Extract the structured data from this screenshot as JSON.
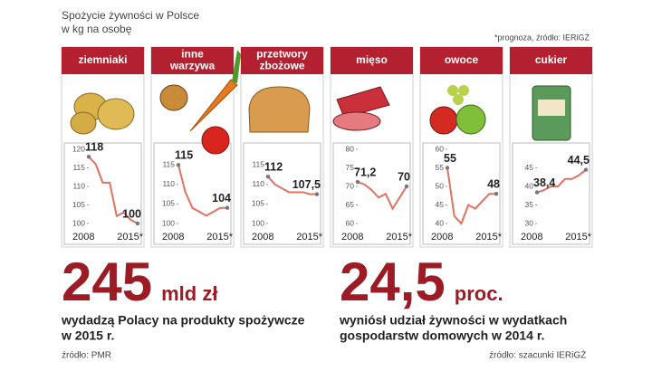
{
  "header": {
    "title": "Spożycie żywności w Polsce",
    "subtitle": "w kg na osobę",
    "note": "*prognoza, źródło: IERiGŻ"
  },
  "chart_data": [
    {
      "type": "line",
      "title": [
        "ziemniaki"
      ],
      "categories": [
        "2008",
        null,
        null,
        null,
        null,
        null,
        null,
        "2015*"
      ],
      "values": [
        118,
        116,
        111,
        111,
        102,
        103,
        101,
        100
      ],
      "value_labels": [
        "118",
        null,
        null,
        null,
        null,
        null,
        null,
        "100"
      ],
      "ylim": [
        100,
        120
      ],
      "yticks": [
        100,
        105,
        110,
        115,
        120
      ],
      "color": "#e2715f"
    },
    {
      "type": "line",
      "title": [
        "inne",
        "warzywa"
      ],
      "categories": [
        "2008",
        null,
        null,
        null,
        null,
        null,
        null,
        "2015*"
      ],
      "values": [
        115,
        108,
        104,
        103,
        102,
        103,
        104,
        104
      ],
      "value_labels": [
        "115",
        null,
        null,
        null,
        null,
        null,
        null,
        "104"
      ],
      "ylim": [
        100,
        119
      ],
      "yticks": [
        100,
        105,
        110,
        115
      ],
      "color": "#e2715f"
    },
    {
      "type": "line",
      "title": [
        "przetwory",
        "zbożowe"
      ],
      "categories": [
        "2008",
        null,
        null,
        null,
        null,
        null,
        null,
        "2015*"
      ],
      "values": [
        112,
        110,
        109,
        108,
        108,
        108,
        107.5,
        107.5
      ],
      "value_labels": [
        "112",
        null,
        null,
        null,
        null,
        null,
        null,
        "107,5"
      ],
      "ylim": [
        100,
        119
      ],
      "yticks": [
        100,
        105,
        110,
        115
      ],
      "color": "#e2715f"
    },
    {
      "type": "line",
      "title": [
        "mięso"
      ],
      "categories": [
        "2008",
        null,
        null,
        null,
        null,
        null,
        null,
        "2015*"
      ],
      "values": [
        71.2,
        70.5,
        69,
        67,
        68,
        64,
        67,
        70
      ],
      "value_labels": [
        "71,2",
        null,
        null,
        null,
        null,
        null,
        null,
        "70"
      ],
      "ylim": [
        60,
        80
      ],
      "yticks": [
        60,
        65,
        70,
        75,
        80
      ],
      "color": "#e2715f"
    },
    {
      "type": "line",
      "title": [
        "owoce"
      ],
      "categories": [
        "2008",
        null,
        null,
        null,
        null,
        null,
        null,
        "2015*"
      ],
      "values": [
        55,
        42,
        40,
        45,
        44,
        46,
        48,
        48
      ],
      "value_labels": [
        "55",
        null,
        null,
        null,
        null,
        null,
        null,
        "48"
      ],
      "ylim": [
        40,
        60
      ],
      "yticks": [
        40,
        45,
        50,
        55,
        60
      ],
      "color": "#e2715f"
    },
    {
      "type": "line",
      "title": [
        "cukier"
      ],
      "categories": [
        "2008",
        null,
        null,
        null,
        null,
        null,
        null,
        "2015*"
      ],
      "values": [
        38.4,
        39,
        40,
        40,
        42,
        42,
        43,
        44.5
      ],
      "value_labels": [
        "38,4",
        null,
        null,
        null,
        null,
        null,
        null,
        "44,5"
      ],
      "ylim": [
        30,
        50
      ],
      "yticks": [
        30,
        35,
        40,
        45
      ],
      "color": "#e2715f"
    }
  ],
  "stats": [
    {
      "value": "245",
      "unit": "mld zł",
      "text": [
        "wydadzą Polacy na produkty spożywcze",
        "w 2015 r."
      ],
      "source": "źródło: PMR"
    },
    {
      "value": "24,5",
      "unit": "proc.",
      "text": [
        "wyniósł udział żywności w wydatkach",
        "gospodarstw domowych w 2014 r."
      ],
      "source": "źródło: szacunki IERiGŻ"
    }
  ]
}
